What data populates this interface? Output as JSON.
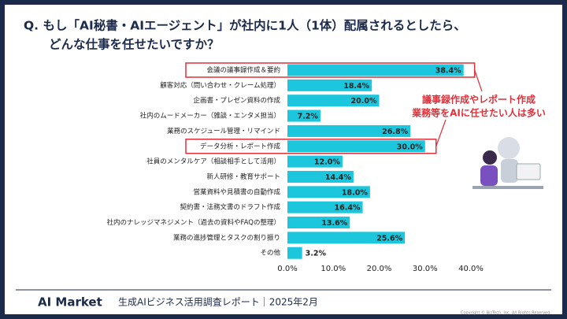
{
  "chart_data": {
    "type": "bar",
    "orientation": "horizontal",
    "title": [
      "Q. もし「AI秘書・AIエージェント」が社内に1人（1体）配属されるとしたら、",
      "どんな仕事を任せたいですか？"
    ],
    "categories": [
      "会議の議事録作成＆要約",
      "顧客対応（問い合わせ・クレーム処理）",
      "企画書・プレゼン資料の作成",
      "社内のムードメーカー（雑談・エンタメ担当）",
      "業務のスケジュール管理・リマインド",
      "データ分析・レポート作成",
      "社員のメンタルケア（相談相手として活用）",
      "新人研修・教育サポート",
      "営業資料や見積書の自動作成",
      "契約書・法務文書のドラフト作成",
      "社内のナレッジマネジメント（過去の資料やFAQの整理）",
      "業務の進捗管理とタスクの割り振り",
      "その他"
    ],
    "values": [
      38.4,
      18.4,
      20.0,
      7.2,
      26.8,
      30.0,
      12.0,
      14.4,
      18.0,
      16.4,
      13.6,
      25.6,
      3.2
    ],
    "value_labels": [
      "38.4%",
      "18.4%",
      "20.0%",
      "7.2%",
      "26.8%",
      "30.0%",
      "12.0%",
      "14.4%",
      "18.0%",
      "16.4%",
      "13.6%",
      "25.6%",
      "3.2%"
    ],
    "color": "#1cc6dc",
    "xlim": [
      0,
      40
    ],
    "xticks": [
      {
        "value": 0,
        "label": "0.0%"
      },
      {
        "value": 10,
        "label": "10.0%"
      },
      {
        "value": 20,
        "label": "20.0%"
      },
      {
        "value": 30,
        "label": "30.0%"
      },
      {
        "value": 40,
        "label": "40.0%"
      }
    ],
    "annotation": [
      "議事録作成やレポート作成",
      "業務等をAIに任せたい人は多い"
    ]
  },
  "footer": {
    "brand": "AI Market",
    "report": "生成AIビジネス活用調査レポート｜2025年2月",
    "copyright": "Copyright © BizTech, Inc. All Rights Reserved."
  }
}
